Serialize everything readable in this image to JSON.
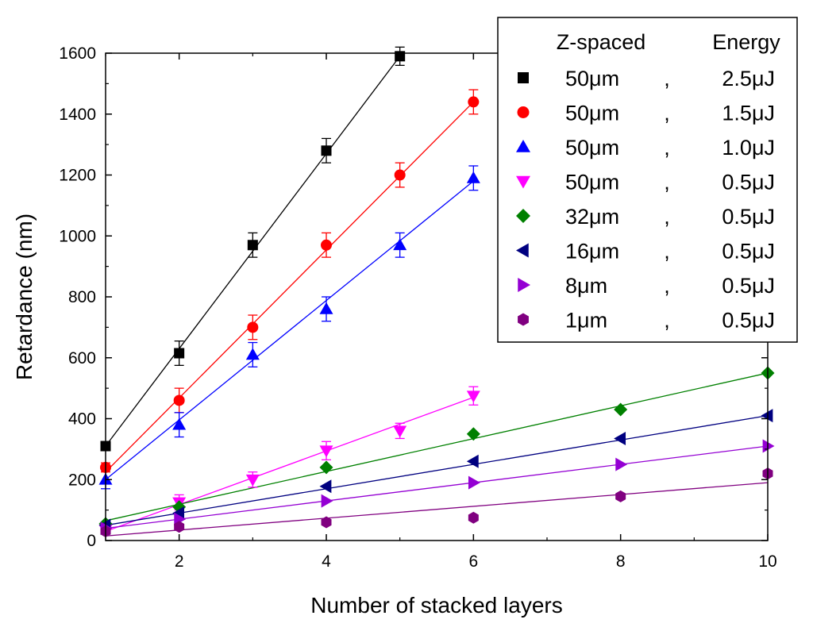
{
  "chart_data": {
    "type": "scatter",
    "xlabel": "Number of stacked layers",
    "ylabel": "Retardance (nm)",
    "xlim": [
      1,
      10
    ],
    "ylim": [
      0,
      1600
    ],
    "xticks": [
      2,
      4,
      6,
      8,
      10
    ],
    "yticks": [
      0,
      200,
      400,
      600,
      800,
      1000,
      1200,
      1400,
      1600
    ],
    "grid": false,
    "legend": {
      "placement": "top-right",
      "header_col1": "Z-spaced",
      "header_col2": "Energy",
      "separator": ","
    },
    "series": [
      {
        "name": "50μm, 2.5μJ",
        "spacing": "50μm",
        "energy": "2.5μJ",
        "color": "#000000",
        "marker": "square",
        "x": [
          1,
          2,
          3,
          4,
          5
        ],
        "y": [
          310,
          615,
          970,
          1280,
          1590
        ],
        "err": [
          15,
          40,
          40,
          40,
          30
        ],
        "fit": [
          [
            1,
            310
          ],
          [
            5,
            1590
          ]
        ]
      },
      {
        "name": "50μm, 1.5μJ",
        "spacing": "50μm",
        "energy": "1.5μJ",
        "color": "#ff0000",
        "marker": "circle",
        "x": [
          1,
          2,
          3,
          4,
          5,
          6
        ],
        "y": [
          240,
          460,
          700,
          970,
          1200,
          1440
        ],
        "err": [
          15,
          40,
          40,
          40,
          40,
          40
        ],
        "fit": [
          [
            1,
            225
          ],
          [
            6,
            1440
          ]
        ]
      },
      {
        "name": "50μm, 1.0μJ",
        "spacing": "50μm",
        "energy": "1.0μJ",
        "color": "#0000ff",
        "marker": "triangle-up",
        "x": [
          1,
          2,
          3,
          4,
          5,
          6
        ],
        "y": [
          200,
          380,
          610,
          760,
          970,
          1190
        ],
        "err": [
          30,
          40,
          40,
          40,
          40,
          40
        ],
        "fit": [
          [
            1,
            200
          ],
          [
            6,
            1180
          ]
        ]
      },
      {
        "name": "50μm, 0.5μJ",
        "spacing": "50μm",
        "energy": "0.5μJ",
        "color": "#ff00ff",
        "marker": "triangle-down",
        "x": [
          1,
          2,
          3,
          4,
          5,
          6
        ],
        "y": [
          35,
          125,
          200,
          295,
          360,
          475
        ],
        "err": [
          5,
          25,
          25,
          30,
          25,
          30
        ],
        "fit": [
          [
            1,
            30
          ],
          [
            6,
            470
          ]
        ]
      },
      {
        "name": "32μm, 0.5μJ",
        "spacing": "32μm",
        "energy": "0.5μJ",
        "color": "#008000",
        "marker": "diamond",
        "x": [
          1,
          2,
          4,
          6,
          8,
          10
        ],
        "y": [
          55,
          110,
          240,
          350,
          430,
          550
        ],
        "err": [
          0,
          0,
          0,
          0,
          0,
          0
        ],
        "fit": [
          [
            1,
            65
          ],
          [
            10,
            550
          ]
        ]
      },
      {
        "name": "16μm, 0.5μJ",
        "spacing": "16μm",
        "energy": "0.5μJ",
        "color": "#000080",
        "marker": "triangle-left",
        "x": [
          1,
          2,
          4,
          6,
          8,
          10
        ],
        "y": [
          50,
          90,
          178,
          260,
          335,
          410
        ],
        "err": [
          0,
          0,
          0,
          0,
          0,
          0
        ],
        "fit": [
          [
            1,
            50
          ],
          [
            10,
            410
          ]
        ]
      },
      {
        "name": "8μm, 0.5μJ",
        "spacing": "8μm",
        "energy": "0.5μJ",
        "color": "#9400d3",
        "marker": "triangle-right",
        "x": [
          1,
          2,
          4,
          6,
          8,
          10
        ],
        "y": [
          40,
          70,
          130,
          190,
          250,
          310
        ],
        "err": [
          0,
          0,
          0,
          0,
          0,
          0
        ],
        "fit": [
          [
            1,
            40
          ],
          [
            10,
            310
          ]
        ]
      },
      {
        "name": "1μm, 0.5μJ",
        "spacing": "1μm",
        "energy": "0.5μJ",
        "color": "#800080",
        "marker": "hexagon",
        "x": [
          1,
          2,
          4,
          6,
          8,
          10
        ],
        "y": [
          30,
          45,
          60,
          75,
          145,
          220
        ],
        "err": [
          0,
          0,
          0,
          0,
          0,
          0
        ],
        "fit": [
          [
            1,
            15
          ],
          [
            10,
            190
          ]
        ]
      }
    ]
  }
}
